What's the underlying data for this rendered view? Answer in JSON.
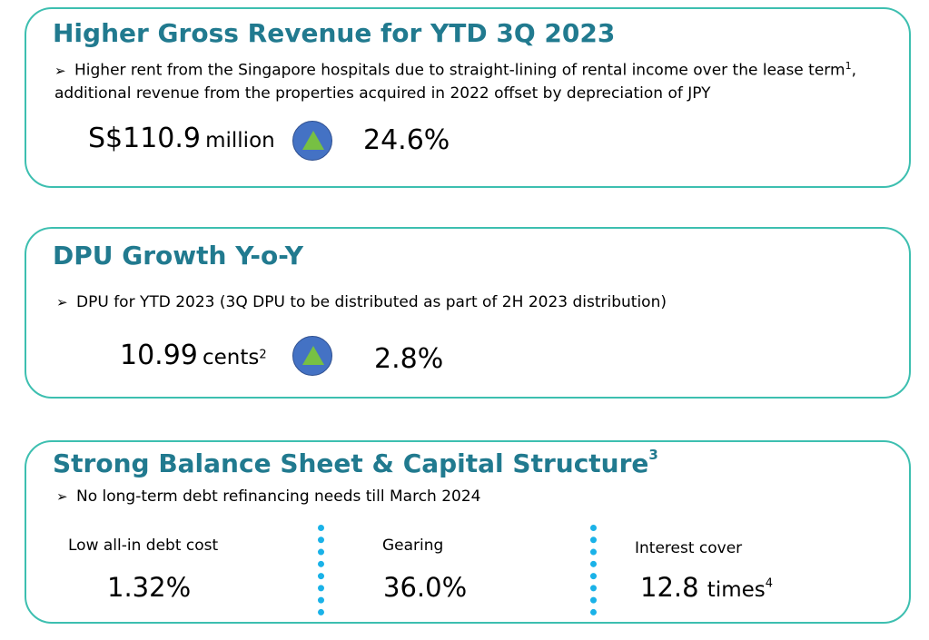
{
  "revenue": {
    "title": "Higher Gross Revenue for YTD 3Q 2023",
    "bullet_text_a": "Higher rent from the Singapore hospitals due to straight-lining of rental income over the lease term",
    "bullet_sup": "1",
    "bullet_text_b": ", additional revenue from the properties acquired in 2022 offset by depreciation of JPY",
    "value": "S$110.9",
    "unit": "million",
    "change": "24.6%",
    "change_icon": "up-triangle-icon",
    "icon_colors": {
      "circle": "#4472c4",
      "triangle": "#77c043"
    }
  },
  "dpu": {
    "title": "DPU Growth Y-o-Y",
    "bullet_text": "DPU for YTD 2023 (3Q DPU to be distributed as part of 2H 2023 distribution)",
    "value": "10.99",
    "unit": "cents",
    "unit_sup": "2",
    "change": "2.8%",
    "change_icon": "up-triangle-icon"
  },
  "balance": {
    "title": "Strong Balance Sheet & Capital Structure",
    "title_sup": "3",
    "bullet_text": "No long-term debt refinancing needs till March 2024",
    "kpis": [
      {
        "label": "Low all-in debt cost",
        "value": "1.32%"
      },
      {
        "label": "Gearing",
        "value": "36.0%"
      },
      {
        "label": "Interest cover",
        "value": "12.8",
        "unit": "times",
        "unit_sup": "4"
      }
    ]
  },
  "colors": {
    "border": "#3dbfb0",
    "title": "#217a8f",
    "divider": "#1ab2e8"
  }
}
